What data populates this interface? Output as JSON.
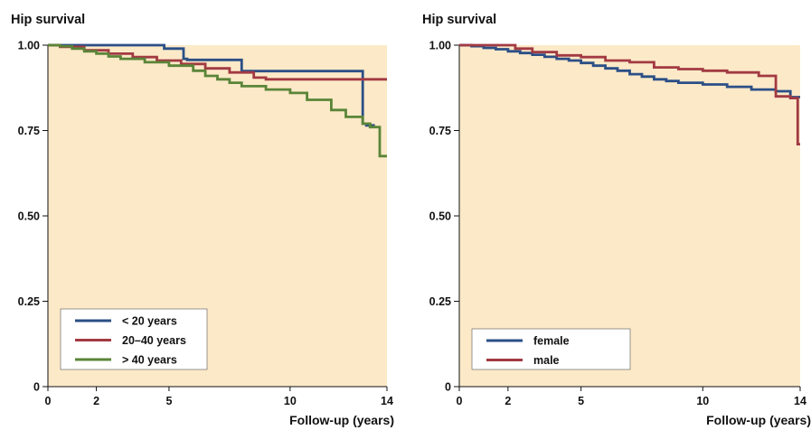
{
  "colors": {
    "background": "#fce9c8",
    "blue": "#2b4f86",
    "red": "#a23a43",
    "green": "#5a8538"
  },
  "chart_data": [
    {
      "type": "line",
      "step": true,
      "title": "",
      "ylabel": "Hip survival",
      "xlabel": "Follow-up (years)",
      "xlim": [
        0,
        14
      ],
      "ylim": [
        0,
        1
      ],
      "xticks": [
        "0",
        "2",
        "5",
        "10",
        "14"
      ],
      "yticks": [
        "0",
        "0.25",
        "0.50",
        "0.75",
        "1.00"
      ],
      "grid": false,
      "legend_position": "bottom-left",
      "series": [
        {
          "name": "< 20 years",
          "color": "#2b4f86",
          "x": [
            0,
            4.8,
            5.6,
            5.75,
            8,
            13,
            13.15,
            13.5
          ],
          "y": [
            1.0,
            0.99,
            0.96,
            0.957,
            0.924,
            0.77,
            0.765,
            0.765
          ]
        },
        {
          "name": "20–40 years",
          "color": "#a23a43",
          "x": [
            0,
            0.5,
            1.5,
            2.5,
            3.5,
            4.5,
            5.5,
            6.5,
            7.5,
            8.5,
            9,
            14
          ],
          "y": [
            1.0,
            0.995,
            0.985,
            0.975,
            0.965,
            0.955,
            0.945,
            0.932,
            0.92,
            0.905,
            0.9,
            0.9
          ]
        },
        {
          "name": "> 40 years",
          "color": "#5a8538",
          "x": [
            0,
            0.5,
            1,
            1.5,
            2,
            2.5,
            3,
            4,
            5,
            6,
            6.5,
            7,
            7.5,
            8,
            9,
            10,
            10.7,
            11.7,
            12.3,
            13,
            13.3,
            13.7,
            14
          ],
          "y": [
            1.0,
            0.997,
            0.99,
            0.982,
            0.975,
            0.967,
            0.96,
            0.95,
            0.94,
            0.925,
            0.91,
            0.9,
            0.89,
            0.88,
            0.87,
            0.86,
            0.84,
            0.81,
            0.79,
            0.77,
            0.76,
            0.675,
            0.675
          ]
        }
      ],
      "legend": [
        "< 20 years",
        "20–40 years",
        "> 40 years"
      ]
    },
    {
      "type": "line",
      "step": true,
      "title": "",
      "ylabel": "Hip survival",
      "xlabel": "Follow-up (years)",
      "xlim": [
        0,
        14
      ],
      "ylim": [
        0,
        1
      ],
      "xticks": [
        "0",
        "2",
        "5",
        "10",
        "14"
      ],
      "yticks": [
        "0",
        "0.25",
        "0.50",
        "0.75",
        "1.00"
      ],
      "grid": false,
      "legend_position": "bottom-left",
      "series": [
        {
          "name": "female",
          "color": "#2b4f86",
          "x": [
            0,
            0.5,
            1,
            1.5,
            2,
            2.5,
            3,
            3.5,
            4,
            4.5,
            5,
            5.5,
            6,
            6.5,
            7,
            7.5,
            8,
            8.5,
            9,
            10,
            11,
            12,
            13,
            13.6,
            14
          ],
          "y": [
            1.0,
            0.997,
            0.992,
            0.988,
            0.982,
            0.977,
            0.972,
            0.966,
            0.96,
            0.955,
            0.948,
            0.94,
            0.932,
            0.925,
            0.915,
            0.908,
            0.9,
            0.895,
            0.89,
            0.885,
            0.878,
            0.87,
            0.865,
            0.848,
            0.848
          ]
        },
        {
          "name": "male",
          "color": "#a23a43",
          "x": [
            0,
            2,
            2.3,
            3,
            4,
            5,
            6,
            7,
            8,
            9,
            10,
            11,
            12.3,
            13,
            13.6,
            13.9,
            14
          ],
          "y": [
            1.0,
            1.0,
            0.99,
            0.98,
            0.97,
            0.965,
            0.955,
            0.95,
            0.935,
            0.93,
            0.925,
            0.92,
            0.91,
            0.85,
            0.845,
            0.71,
            0.71
          ]
        }
      ],
      "legend": [
        "female",
        "male"
      ]
    }
  ]
}
